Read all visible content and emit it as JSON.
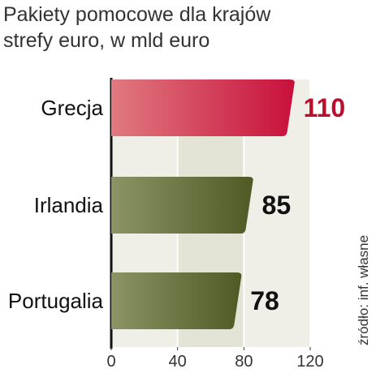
{
  "chart_data": {
    "type": "bar",
    "orientation": "horizontal",
    "title": [
      "Pakiety pomocowe dla krajów",
      "strefy euro, w mld euro"
    ],
    "categories": [
      "Grecja",
      "Irlandia",
      "Portugalia"
    ],
    "values": [
      110,
      85,
      78
    ],
    "xlim": [
      0,
      120
    ],
    "xticks": [
      0,
      40,
      80,
      120
    ],
    "grid": true,
    "source": "źródło: inf. własne",
    "colors": {
      "Grecja": "#c8103a",
      "Irlandia": "#5c6a2e",
      "Portugalia": "#5c6a2e",
      "value_highlight": "#b8102e",
      "value_default": "#111111"
    }
  }
}
